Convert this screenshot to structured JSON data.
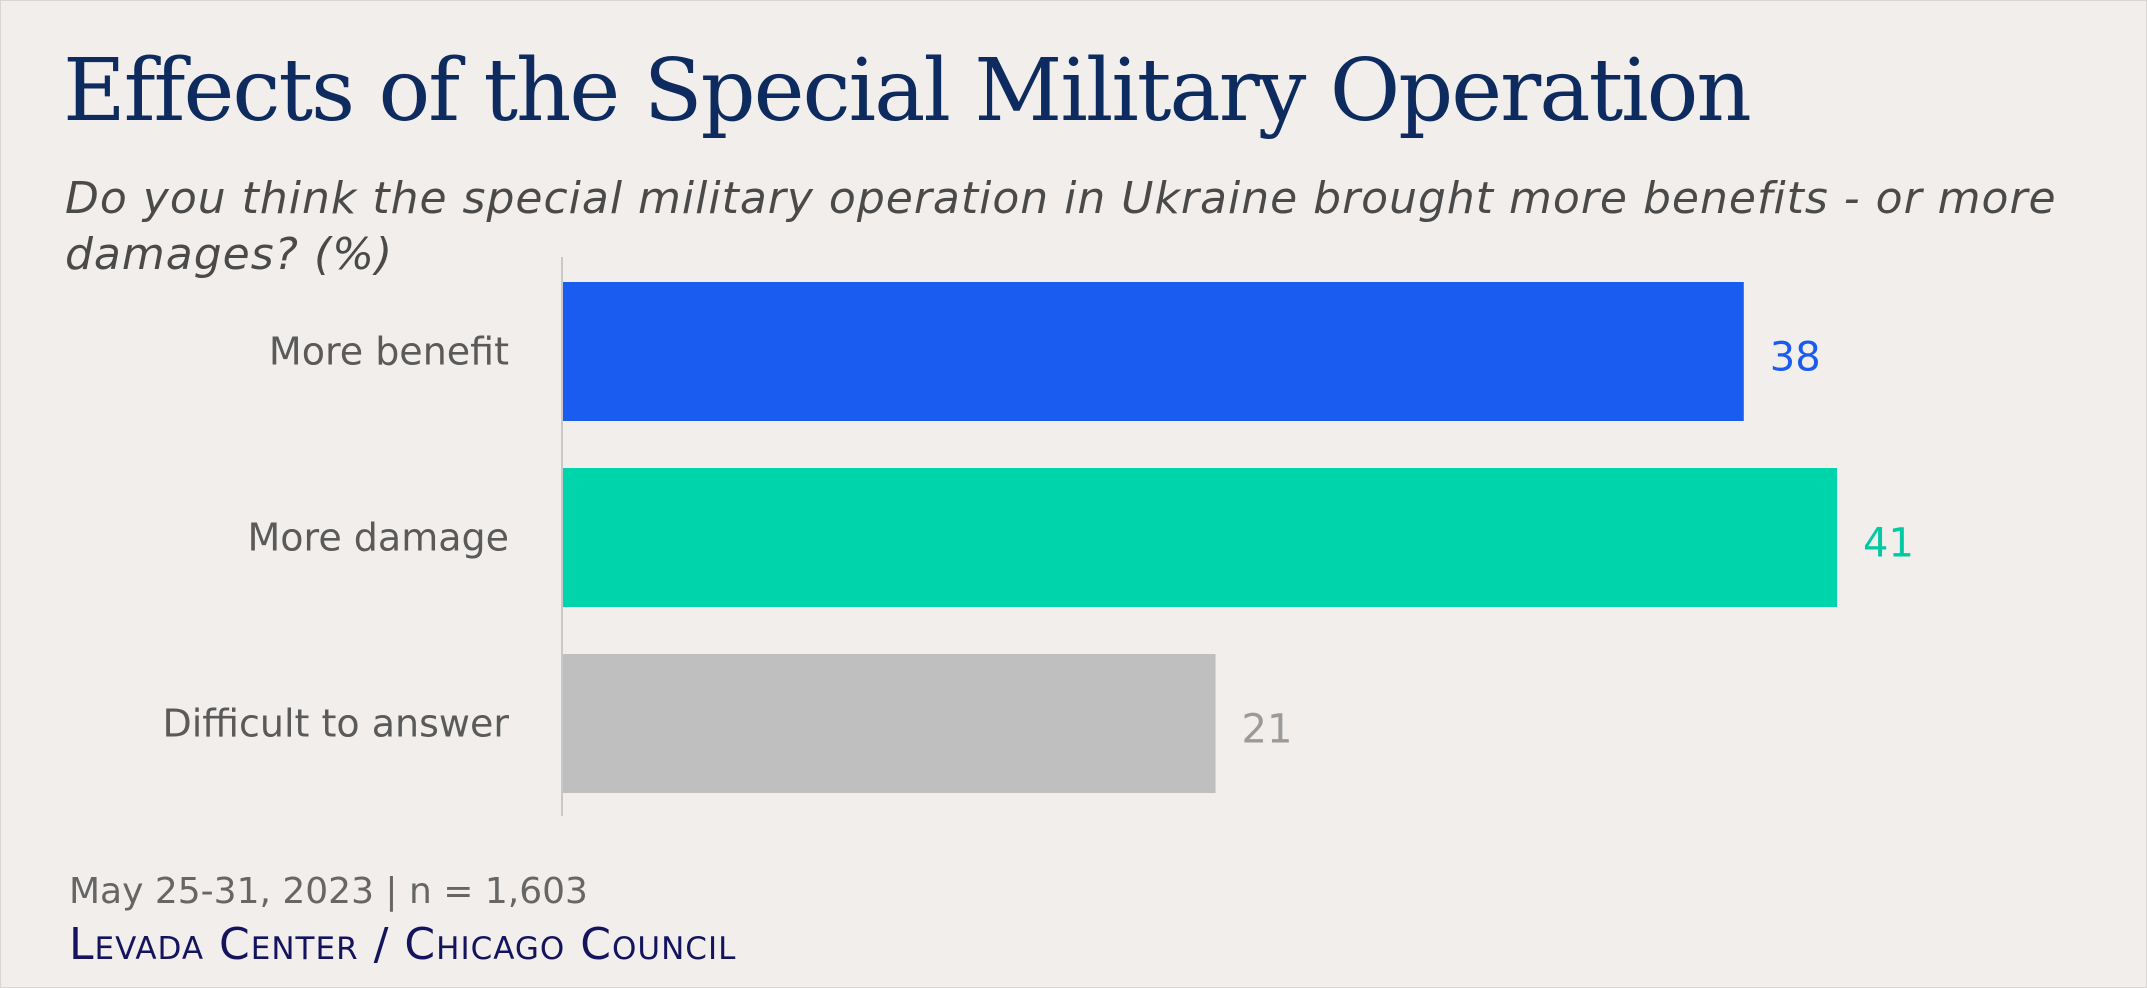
{
  "chart_data": {
    "type": "bar",
    "orientation": "horizontal",
    "title": "Effects of the Special Military Operation",
    "subtitle": "Do you think the special military operation in Ukraine brought more benefits - or more damages? (%)",
    "categories": [
      "More benefit",
      "More damage",
      "Difficult to answer"
    ],
    "values": [
      38,
      41,
      21
    ],
    "colors": [
      "#1a5cf0",
      "#00d4aa",
      "#bfbfbf"
    ],
    "label_colors": [
      "#1a5cf0",
      "#00c9a3",
      "#9a9a9a"
    ],
    "xlim": [
      0,
      50
    ],
    "grid": false,
    "legend": "none"
  },
  "footnote": "May 25-31, 2023 | n = 1,603",
  "source": "Levada Center / Chicago Council",
  "background_color": "#f1eeeb",
  "title_color": "#0d2b5e"
}
